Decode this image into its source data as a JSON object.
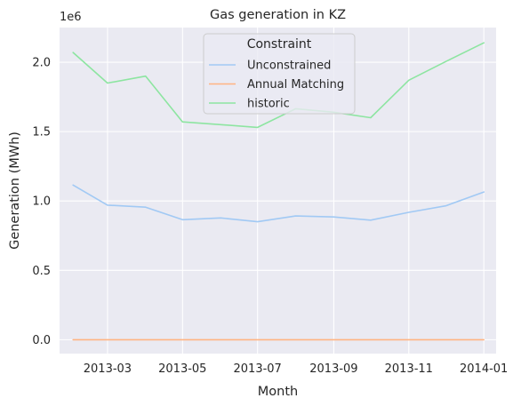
{
  "chart_data": {
    "type": "line",
    "title": "Gas generation in KZ",
    "xlabel": "Month",
    "ylabel": "Generation (MWh)",
    "y_offset_label": "1e6",
    "y_scale": 1000000,
    "ylim": [
      -100000,
      2250000
    ],
    "xlim": [
      "2013-01-21",
      "2014-01-11"
    ],
    "grid": true,
    "background": "#eaeaf2",
    "x_ticks": [
      {
        "date": "2013-03-01",
        "label": "2013-03"
      },
      {
        "date": "2013-05-01",
        "label": "2013-05"
      },
      {
        "date": "2013-07-01",
        "label": "2013-07"
      },
      {
        "date": "2013-09-01",
        "label": "2013-09"
      },
      {
        "date": "2013-11-01",
        "label": "2013-11"
      },
      {
        "date": "2014-01-01",
        "label": "2014-01"
      }
    ],
    "y_ticks": [
      {
        "value": 0,
        "label": "0.0"
      },
      {
        "value": 500000,
        "label": "0.5"
      },
      {
        "value": 1000000,
        "label": "1.0"
      },
      {
        "value": 1500000,
        "label": "1.5"
      },
      {
        "value": 2000000,
        "label": "2.0"
      }
    ],
    "x": [
      "2013-02-01",
      "2013-03-01",
      "2013-04-01",
      "2013-05-01",
      "2013-06-01",
      "2013-07-01",
      "2013-08-01",
      "2013-09-01",
      "2013-10-01",
      "2013-11-01",
      "2013-12-01",
      "2014-01-01"
    ],
    "legend": {
      "title": "Constraint",
      "placement": "top-center"
    },
    "series": [
      {
        "name": "Unconstrained",
        "color": "#a1c9f4",
        "values": [
          1115000,
          970000,
          955000,
          865000,
          878000,
          850000,
          892000,
          885000,
          862000,
          918000,
          965000,
          1065000
        ]
      },
      {
        "name": "Annual Matching",
        "color": "#ffb482",
        "values": [
          0,
          0,
          0,
          0,
          0,
          0,
          0,
          0,
          0,
          0,
          0,
          0
        ]
      },
      {
        "name": "historic",
        "color": "#8de5a1",
        "values": [
          2070000,
          1850000,
          1900000,
          1570000,
          1550000,
          1530000,
          1665000,
          1640000,
          1600000,
          1870000,
          2005000,
          2140000
        ]
      }
    ]
  }
}
